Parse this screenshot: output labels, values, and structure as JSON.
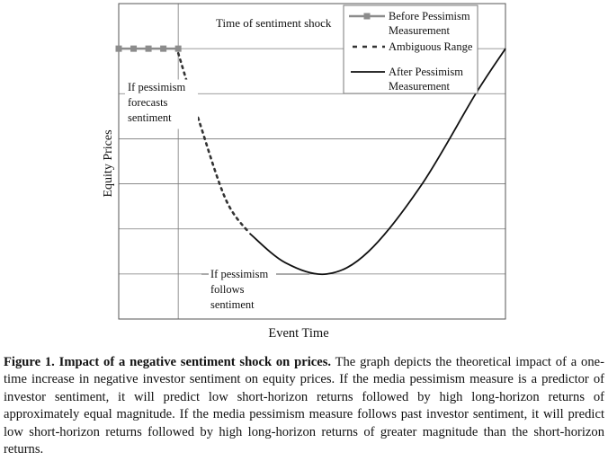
{
  "chart_data": {
    "type": "line",
    "xlabel": "Event Time",
    "ylabel": "Equity Prices",
    "grid": true,
    "legend_position": "top-right",
    "series": [
      {
        "name": "Before Pessimism Measurement",
        "style": "solid-square-markers",
        "color": "#8c8c8c",
        "points": [
          [
            -1.0,
            0.0
          ],
          [
            -0.75,
            0.0
          ],
          [
            -0.5,
            0.0
          ],
          [
            -0.25,
            0.0
          ],
          [
            0.0,
            0.0
          ]
        ]
      },
      {
        "name": "Ambiguous Range",
        "style": "dotted",
        "color": "#333333",
        "points": [
          [
            0.0,
            -0.1
          ],
          [
            0.35,
            -1.6
          ],
          [
            0.8,
            -3.35
          ],
          [
            1.2,
            -4.1
          ]
        ]
      },
      {
        "name": "After Pessimism Measurement",
        "style": "solid",
        "color": "#111111",
        "points": [
          [
            1.2,
            -4.1
          ],
          [
            1.8,
            -4.75
          ],
          [
            2.5,
            -5.0
          ],
          [
            3.2,
            -4.5
          ],
          [
            4.1,
            -3.0
          ],
          [
            5.0,
            -1.0
          ],
          [
            5.5,
            0.0
          ]
        ]
      }
    ],
    "annotations": [
      {
        "text": "Time of sentiment shock"
      },
      {
        "text": "If pessimism\nforecasts\nsentiment"
      },
      {
        "text": "If pessimism\nfollows\nsentiment"
      }
    ],
    "colors": {
      "before": "#8c8c8c",
      "ambiguous": "#333333",
      "after": "#111111",
      "grid": "#7a7a7a",
      "axis": "#555555"
    }
  },
  "caption": {
    "label": "Figure 1.",
    "title": "Impact of a negative sentiment shock on prices.",
    "text": "The graph depicts the theoretical impact of a one-time increase in negative investor sentiment on equity prices. If the media pessimism measure is a predictor of investor sentiment, it will predict low short-horizon returns followed by high long-horizon returns of approximately equal magnitude. If the media pessimism measure follows past investor sentiment, it will predict low short-horizon returns followed by high long-horizon returns of greater magnitude than the short-horizon returns."
  }
}
